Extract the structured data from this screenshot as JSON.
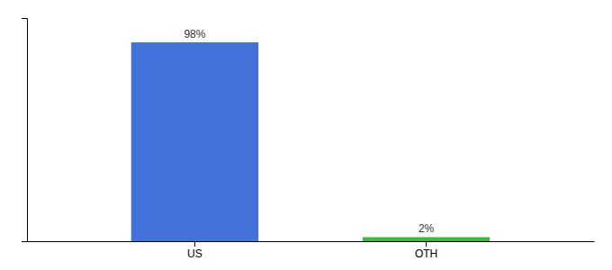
{
  "chart_data": {
    "type": "bar",
    "categories": [
      "US",
      "OTH"
    ],
    "values": [
      98,
      2
    ],
    "value_labels": [
      "98%",
      "2%"
    ],
    "colors": [
      "#4472db",
      "#3dba3d"
    ],
    "ylim": [
      0,
      110
    ],
    "data_labels": true,
    "tick_labels": "x"
  }
}
